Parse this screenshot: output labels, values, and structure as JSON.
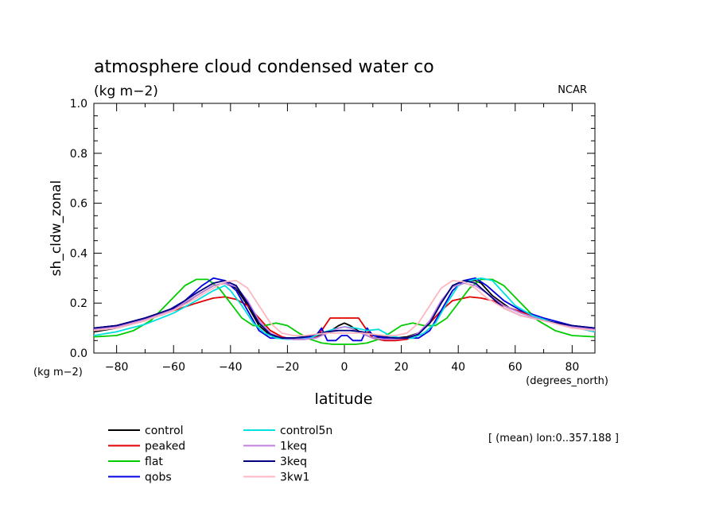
{
  "header": {
    "title": "atmosphere cloud condensed water co",
    "units": "(kg m−2)",
    "source": "NCAR"
  },
  "axis_notes": {
    "y_units": "(kg m−2)",
    "x_units": "(degrees_north)"
  },
  "footnote": "[ (mean) lon:0..357.188 ]",
  "chart_data": {
    "type": "line",
    "title": "atmosphere cloud condensed water co",
    "subtitle": "(kg m−2)",
    "xlabel": "latitude",
    "ylabel": "sh_cldw_zonal",
    "xlim": [
      -88,
      88
    ],
    "ylim": [
      0,
      1
    ],
    "x_ticks": [
      -80,
      -60,
      -40,
      -20,
      0,
      20,
      40,
      60,
      80
    ],
    "y_ticks": [
      0.0,
      0.2,
      0.4,
      0.6,
      0.8,
      1.0
    ],
    "y_tick_labels": [
      "0.0",
      "0.2",
      "0.4",
      "0.6",
      "0.8",
      "1.0"
    ],
    "grid": false,
    "legend": "below",
    "series": [
      {
        "name": "control",
        "color": "#000000",
        "x": [
          -88,
          -80,
          -70,
          -60,
          -52,
          -46,
          -42,
          -38,
          -34,
          -30,
          -26,
          -22,
          -18,
          -14,
          -10,
          -6,
          -2,
          0,
          2,
          6,
          10,
          14,
          18,
          22,
          26,
          30,
          34,
          38,
          42,
          46,
          48,
          52,
          58,
          66,
          74,
          82,
          88
        ],
        "y": [
          0.085,
          0.1,
          0.13,
          0.17,
          0.23,
          0.27,
          0.28,
          0.26,
          0.19,
          0.11,
          0.07,
          0.06,
          0.06,
          0.06,
          0.065,
          0.08,
          0.11,
          0.12,
          0.11,
          0.08,
          0.06,
          0.06,
          0.06,
          0.065,
          0.08,
          0.12,
          0.2,
          0.27,
          0.29,
          0.29,
          0.28,
          0.23,
          0.18,
          0.15,
          0.12,
          0.1,
          0.085
        ]
      },
      {
        "name": "peaked",
        "color": "#e00000",
        "x": [
          -88,
          -80,
          -70,
          -60,
          -52,
          -46,
          -42,
          -38,
          -34,
          -30,
          -26,
          -22,
          -18,
          -14,
          -10,
          -8,
          -5,
          -3,
          3,
          5,
          8,
          10,
          14,
          18,
          22,
          26,
          30,
          34,
          38,
          44,
          48,
          52,
          58,
          66,
          74,
          82,
          88
        ],
        "y": [
          0.1,
          0.11,
          0.14,
          0.17,
          0.2,
          0.22,
          0.225,
          0.215,
          0.19,
          0.14,
          0.09,
          0.065,
          0.055,
          0.055,
          0.065,
          0.09,
          0.14,
          0.14,
          0.14,
          0.14,
          0.09,
          0.06,
          0.05,
          0.05,
          0.055,
          0.08,
          0.12,
          0.17,
          0.21,
          0.225,
          0.22,
          0.21,
          0.18,
          0.15,
          0.12,
          0.1,
          0.09
        ]
      },
      {
        "name": "flat",
        "color": "#00cc00",
        "x": [
          -88,
          -80,
          -74,
          -68,
          -62,
          -56,
          -52,
          -48,
          -44,
          -40,
          -36,
          -32,
          -28,
          -24,
          -20,
          -16,
          -12,
          -8,
          -4,
          0,
          4,
          8,
          12,
          16,
          20,
          24,
          28,
          32,
          36,
          40,
          44,
          48,
          52,
          56,
          62,
          68,
          74,
          80,
          88
        ],
        "y": [
          0.065,
          0.07,
          0.09,
          0.13,
          0.2,
          0.27,
          0.295,
          0.295,
          0.26,
          0.2,
          0.14,
          0.11,
          0.11,
          0.12,
          0.11,
          0.08,
          0.055,
          0.04,
          0.035,
          0.035,
          0.035,
          0.04,
          0.055,
          0.08,
          0.11,
          0.12,
          0.11,
          0.11,
          0.14,
          0.2,
          0.26,
          0.295,
          0.295,
          0.27,
          0.2,
          0.13,
          0.09,
          0.07,
          0.065
        ]
      },
      {
        "name": "qobs",
        "color": "#0000e0",
        "x": [
          -88,
          -80,
          -70,
          -62,
          -56,
          -50,
          -46,
          -42,
          -38,
          -34,
          -30,
          -26,
          -22,
          -18,
          -14,
          -10,
          -8,
          -6,
          -3,
          -1,
          1,
          3,
          6,
          8,
          10,
          14,
          18,
          22,
          26,
          30,
          34,
          38,
          42,
          46,
          50,
          56,
          62,
          70,
          80,
          88
        ],
        "y": [
          0.1,
          0.11,
          0.14,
          0.17,
          0.21,
          0.27,
          0.3,
          0.29,
          0.25,
          0.17,
          0.09,
          0.06,
          0.06,
          0.06,
          0.06,
          0.07,
          0.1,
          0.05,
          0.05,
          0.07,
          0.07,
          0.05,
          0.05,
          0.1,
          0.07,
          0.06,
          0.06,
          0.06,
          0.06,
          0.09,
          0.17,
          0.25,
          0.29,
          0.3,
          0.27,
          0.21,
          0.17,
          0.14,
          0.11,
          0.1
        ]
      },
      {
        "name": "control5n",
        "color": "#00e0e0",
        "x": [
          -88,
          -80,
          -70,
          -60,
          -52,
          -46,
          -42,
          -40,
          -36,
          -32,
          -28,
          -24,
          -20,
          -16,
          -12,
          -8,
          -4,
          0,
          4,
          8,
          12,
          16,
          20,
          24,
          28,
          32,
          36,
          40,
          44,
          48,
          52,
          56,
          60,
          66,
          74,
          82,
          88
        ],
        "y": [
          0.07,
          0.085,
          0.115,
          0.16,
          0.21,
          0.25,
          0.27,
          0.25,
          0.19,
          0.12,
          0.08,
          0.06,
          0.055,
          0.055,
          0.06,
          0.08,
          0.095,
          0.105,
          0.1,
          0.09,
          0.095,
          0.07,
          0.06,
          0.06,
          0.08,
          0.12,
          0.2,
          0.27,
          0.29,
          0.3,
          0.29,
          0.24,
          0.19,
          0.15,
          0.12,
          0.1,
          0.085
        ]
      },
      {
        "name": "1keq",
        "color": "#c080e0",
        "x": [
          -88,
          -80,
          -70,
          -60,
          -52,
          -46,
          -42,
          -38,
          -34,
          -30,
          -26,
          -22,
          -18,
          -14,
          -10,
          -6,
          -2,
          0,
          2,
          6,
          10,
          14,
          18,
          22,
          26,
          30,
          34,
          38,
          42,
          46,
          50,
          56,
          62,
          70,
          80,
          88
        ],
        "y": [
          0.095,
          0.105,
          0.135,
          0.175,
          0.23,
          0.27,
          0.28,
          0.265,
          0.21,
          0.13,
          0.08,
          0.06,
          0.055,
          0.055,
          0.06,
          0.08,
          0.1,
          0.105,
          0.1,
          0.08,
          0.06,
          0.055,
          0.055,
          0.06,
          0.08,
          0.13,
          0.21,
          0.265,
          0.28,
          0.27,
          0.24,
          0.19,
          0.16,
          0.13,
          0.105,
          0.095
        ]
      },
      {
        "name": "3keq",
        "color": "#000080",
        "x": [
          -88,
          -80,
          -70,
          -60,
          -52,
          -46,
          -42,
          -38,
          -34,
          -30,
          -26,
          -22,
          -18,
          -14,
          -10,
          -6,
          -2,
          0,
          2,
          6,
          10,
          14,
          18,
          22,
          26,
          30,
          34,
          38,
          42,
          46,
          50,
          56,
          62,
          70,
          80,
          88
        ],
        "y": [
          0.1,
          0.11,
          0.14,
          0.18,
          0.24,
          0.28,
          0.29,
          0.27,
          0.2,
          0.12,
          0.075,
          0.06,
          0.06,
          0.065,
          0.075,
          0.085,
          0.09,
          0.09,
          0.09,
          0.085,
          0.075,
          0.065,
          0.06,
          0.06,
          0.075,
          0.12,
          0.2,
          0.27,
          0.29,
          0.28,
          0.24,
          0.18,
          0.15,
          0.13,
          0.11,
          0.1
        ]
      },
      {
        "name": "3kw1",
        "color": "#ffb6c1",
        "x": [
          -88,
          -80,
          -70,
          -60,
          -52,
          -46,
          -42,
          -38,
          -34,
          -30,
          -26,
          -22,
          -18,
          -14,
          -10,
          -6,
          -2,
          0,
          2,
          6,
          10,
          14,
          18,
          22,
          26,
          30,
          34,
          38,
          42,
          46,
          50,
          56,
          62,
          70,
          80,
          88
        ],
        "y": [
          0.09,
          0.1,
          0.13,
          0.17,
          0.22,
          0.26,
          0.285,
          0.29,
          0.26,
          0.19,
          0.12,
          0.08,
          0.07,
          0.07,
          0.075,
          0.08,
          0.08,
          0.08,
          0.08,
          0.08,
          0.075,
          0.07,
          0.07,
          0.08,
          0.12,
          0.19,
          0.26,
          0.29,
          0.285,
          0.26,
          0.22,
          0.18,
          0.15,
          0.13,
          0.1,
          0.09
        ]
      }
    ]
  }
}
